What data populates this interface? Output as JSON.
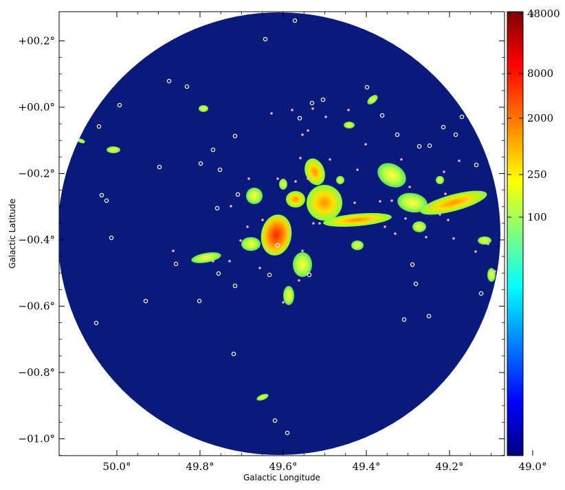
{
  "image": {
    "description_tag": "galactic-map",
    "xlabel": "Galactic Longitude",
    "ylabel": "Galactic Latitude",
    "x_ticks": [
      {
        "value": 50.0,
        "label": "50.0°"
      },
      {
        "value": 49.8,
        "label": "49.8°"
      },
      {
        "value": 49.6,
        "label": "49.6°"
      },
      {
        "value": 49.4,
        "label": "49.4°"
      },
      {
        "value": 49.2,
        "label": "49.2°"
      },
      {
        "value": 49.0,
        "label": "49.0°"
      }
    ],
    "y_ticks": [
      {
        "value": 0.2,
        "label": "+00.2°"
      },
      {
        "value": 0.0,
        "label": "+00.0°"
      },
      {
        "value": -0.2,
        "label": "−00.2°"
      },
      {
        "value": -0.4,
        "label": "−00.4°"
      },
      {
        "value": -0.6,
        "label": "−00.6°"
      },
      {
        "value": -0.8,
        "label": "−00.8°"
      },
      {
        "value": -1.0,
        "label": "−01.0°"
      }
    ],
    "colorbar": {
      "ticks": [
        {
          "value": 48000,
          "label": "48000"
        },
        {
          "value": 8000,
          "label": "8000"
        },
        {
          "value": 2000,
          "label": "2000"
        },
        {
          "value": 250,
          "label": "250"
        },
        {
          "value": 100,
          "label": "100"
        }
      ],
      "colors": [
        "#00007f",
        "#0000ff",
        "#007fff",
        "#00ffff",
        "#7fff7f",
        "#ffff00",
        "#ff7f00",
        "#ff0000",
        "#7f0000"
      ]
    },
    "background_color": "#0a1a7a"
  }
}
